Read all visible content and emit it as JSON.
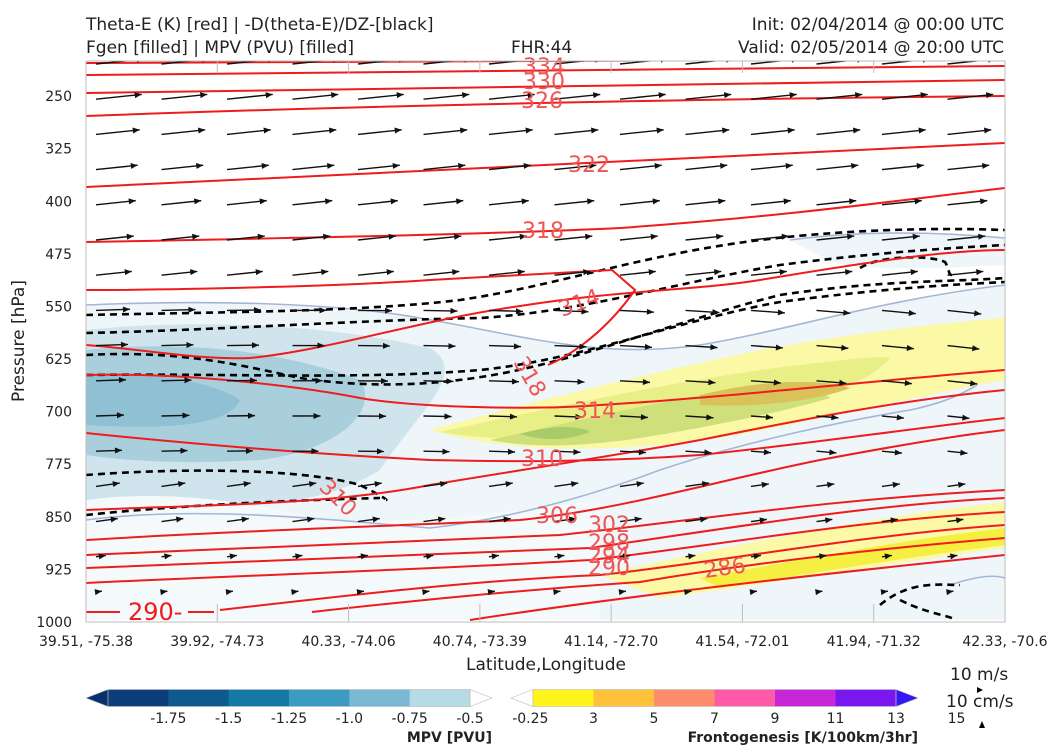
{
  "header": {
    "line1_left": "Theta-E (K) [red] | -D(theta-E)/DZ-[black]",
    "line2_left": "Fgen [filled] | MPV (PVU) [filled]",
    "fhr": "FHR:44",
    "init": "Init: 02/04/2014 @ 00:00 UTC",
    "valid": "Valid: 02/05/2014 @ 20:00 UTC"
  },
  "chart_data": {
    "type": "cross-section",
    "xlabel": "Latitude,Longitude",
    "ylabel": "Pressure [hPa]",
    "x_ticks": [
      "39.51, -75.38",
      "39.92, -74.73",
      "40.33, -74.06",
      "40.74, -73.39",
      "41.14, -72.70",
      "41.54, -72.01",
      "41.94, -71.32",
      "42.33, -70.6"
    ],
    "y_ticks": [
      250,
      325,
      400,
      475,
      550,
      625,
      700,
      775,
      850,
      925,
      1000
    ],
    "ylim": [
      1000,
      200
    ],
    "theta_e_contours": [
      {
        "label": "334"
      },
      {
        "label": "330"
      },
      {
        "label": "326"
      },
      {
        "label": "322"
      },
      {
        "label": "318"
      },
      {
        "label": "314"
      },
      {
        "label": "318"
      },
      {
        "label": "314"
      },
      {
        "label": "310"
      },
      {
        "label": "310"
      },
      {
        "label": "306"
      },
      {
        "label": "302"
      },
      {
        "label": "298"
      },
      {
        "label": "294"
      },
      {
        "label": "290"
      },
      {
        "label": "290-"
      },
      {
        "label": "286"
      }
    ],
    "wind_reference": {
      "horizontal": "10 m/s",
      "vertical": "10 cm/s"
    },
    "colorbars": [
      {
        "title": "MPV [PVU]",
        "ticks": [
          "-1.75",
          "-1.5",
          "-1.25",
          "-1.0",
          "-0.75",
          "-0.5",
          "-0.25"
        ],
        "colors": [
          "#08306b",
          "#0d3d7a",
          "#0e5a8f",
          "#1479a5",
          "#3c9bc0",
          "#7ab8d3",
          "#b7dbe6",
          "#ffffff"
        ]
      },
      {
        "title": "Frontogenesis [K/100km/3hr]",
        "ticks": [
          "3",
          "5",
          "7",
          "9",
          "11",
          "13",
          "15"
        ],
        "colors": [
          "#ffffff",
          "#fff41c",
          "#ffc03c",
          "#ff8c6a",
          "#ff5aa8",
          "#c628d8",
          "#7a17ee",
          "#3317f4"
        ]
      }
    ],
    "colors": {
      "theta_e": "#ee1c1c",
      "fgen_grad": "#000000",
      "mpv_outline": "#a4b6d8"
    }
  }
}
